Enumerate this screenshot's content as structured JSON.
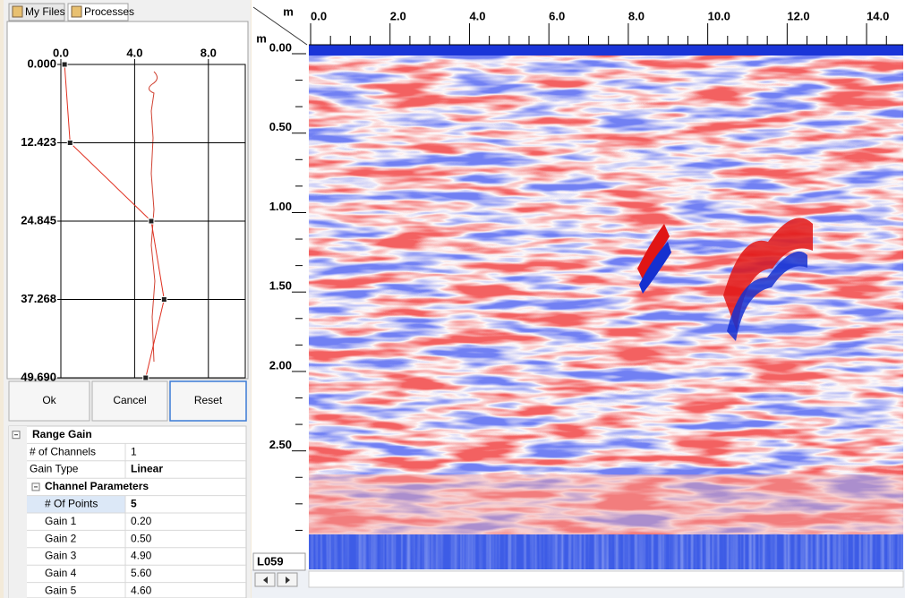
{
  "tabs": [
    "My Files",
    "Processes"
  ],
  "gain_chart": {
    "type": "line",
    "xlim": [
      0,
      10
    ],
    "xticks": [
      {
        "value": 0,
        "label": "0.0"
      },
      {
        "value": 4,
        "label": "4.0"
      },
      {
        "value": 8,
        "label": "8.0"
      }
    ],
    "ylim": [
      0,
      49.69
    ],
    "yticks": [
      {
        "value": 0,
        "label": "0.000"
      },
      12.423,
      24.845,
      37.268,
      {
        "value": 49.69,
        "label": "49.690"
      }
    ],
    "color": "#e03020"
  },
  "buttons": [
    "Ok",
    "Cancel",
    "Reset"
  ],
  "properties": {
    "section": "Range Gain",
    "rows": [
      {
        "name": "# of Channels",
        "value": "1"
      },
      {
        "name": "Gain Type",
        "value": "Linear"
      }
    ],
    "subsection": "Channel Parameters",
    "points": {
      "name": "# Of Points",
      "value": "5"
    },
    "gains": [
      {
        "name": "Gain 1",
        "value": 0.2,
        "label": "0.20"
      },
      {
        "name": "Gain 2",
        "value": 0.5,
        "label": "0.50"
      },
      {
        "name": "Gain 3",
        "value": 4.9,
        "label": "4.90"
      },
      {
        "name": "Gain 4",
        "value": 5.6,
        "label": "5.60"
      },
      {
        "name": "Gain 5",
        "value": 4.6,
        "label": "4.60"
      }
    ]
  },
  "radargram": {
    "x_unit": "m",
    "y_unit": "m",
    "xlim": [
      0,
      14.9
    ],
    "xticks": [
      {
        "value": 0,
        "label": "0.0"
      },
      {
        "value": 2,
        "label": "2.0"
      },
      {
        "value": 4,
        "label": "4.0"
      },
      {
        "value": 6,
        "label": "6.0"
      },
      {
        "value": 8,
        "label": "8.0"
      },
      {
        "value": 10,
        "label": "10.0"
      },
      {
        "value": 12,
        "label": "12.0"
      },
      {
        "value": 14,
        "label": "14.0"
      }
    ],
    "ylim": [
      0,
      3.24
    ],
    "yticks": [
      {
        "value": 0,
        "label": "0.00"
      },
      {
        "value": 0.5,
        "label": "0.50"
      },
      {
        "value": 1,
        "label": "1.00"
      },
      {
        "value": 1.5,
        "label": "1.50"
      },
      {
        "value": 2,
        "label": "2.00"
      },
      {
        "value": 2.5,
        "label": "2.50"
      }
    ],
    "line_name": "L059"
  }
}
